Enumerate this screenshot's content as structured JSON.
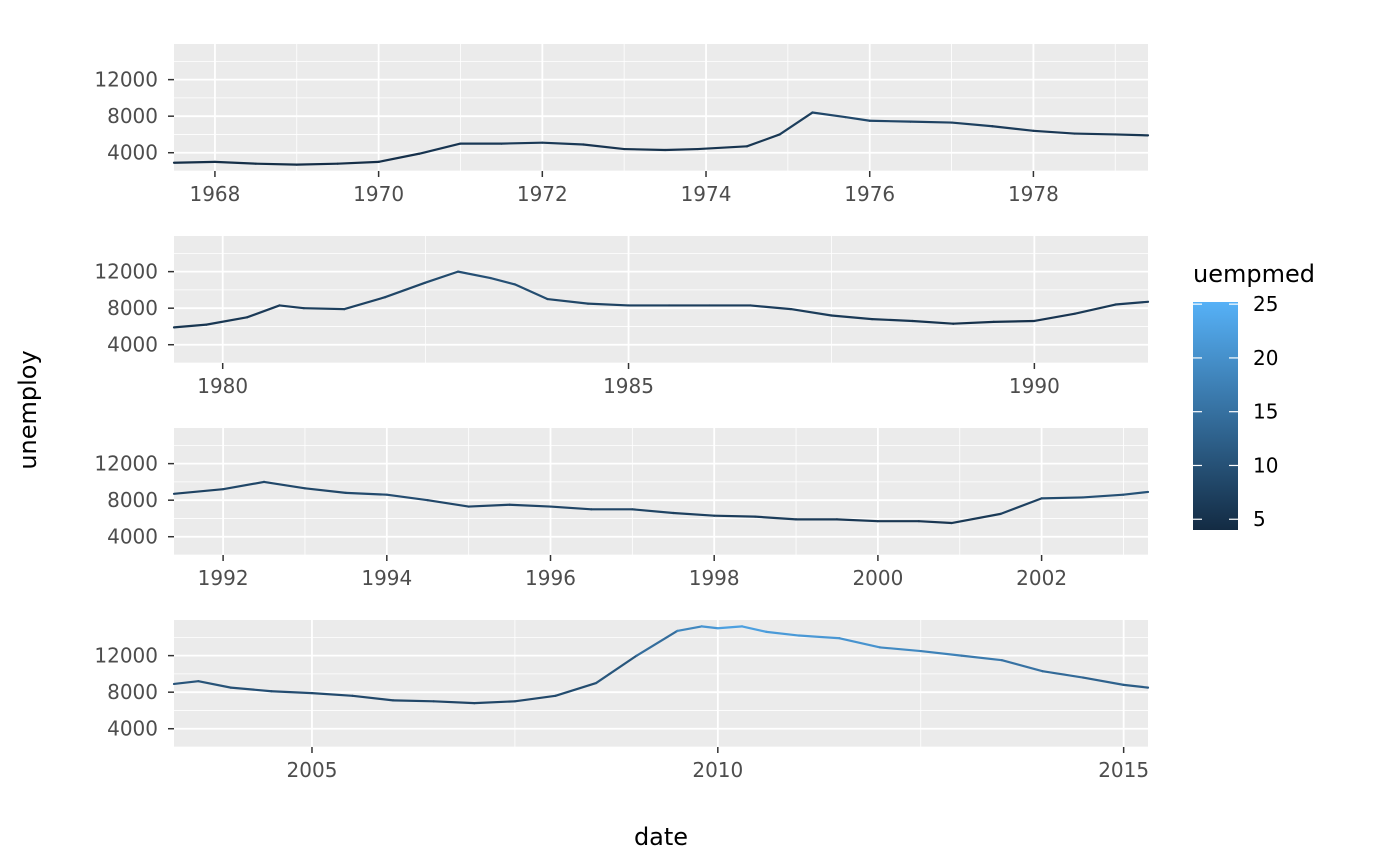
{
  "chart_data": {
    "type": "line",
    "xlabel": "date",
    "ylabel": "unemploy",
    "y_ticks": [
      4000,
      8000,
      12000
    ],
    "ylim": [
      2000,
      15900
    ],
    "grid": true,
    "legend": {
      "title": "uempmed",
      "position": "right",
      "range": [
        4,
        25.2
      ],
      "ticks": [
        5,
        10,
        15,
        20,
        25
      ],
      "color_low": "#132B43",
      "color_high": "#56B1F7"
    },
    "panels": [
      {
        "xlim": [
          1967.5,
          1979.4
        ],
        "x_ticks": [
          1968,
          1970,
          1972,
          1974,
          1976,
          1978
        ],
        "x_minor": [
          1969,
          1971,
          1973,
          1975,
          1977,
          1979
        ],
        "points": [
          [
            1967.5,
            2900,
            4.5
          ],
          [
            1968.0,
            3000,
            4.4
          ],
          [
            1968.5,
            2800,
            4.5
          ],
          [
            1969.0,
            2700,
            4.3
          ],
          [
            1969.5,
            2800,
            4.4
          ],
          [
            1970.0,
            3000,
            4.6
          ],
          [
            1970.5,
            3900,
            5.0
          ],
          [
            1971.0,
            5000,
            6.2
          ],
          [
            1971.5,
            5000,
            6.3
          ],
          [
            1972.0,
            5100,
            6.5
          ],
          [
            1972.5,
            4900,
            6.0
          ],
          [
            1973.0,
            4400,
            5.0
          ],
          [
            1973.5,
            4300,
            5.2
          ],
          [
            1973.9,
            4400,
            5.1
          ],
          [
            1974.5,
            4700,
            5.7
          ],
          [
            1974.9,
            6000,
            6.0
          ],
          [
            1975.3,
            8400,
            8.0
          ],
          [
            1975.7,
            7900,
            9.0
          ],
          [
            1976.0,
            7500,
            8.5
          ],
          [
            1976.5,
            7400,
            7.8
          ],
          [
            1977.0,
            7300,
            7.5
          ],
          [
            1977.5,
            6900,
            7.0
          ],
          [
            1978.0,
            6400,
            6.2
          ],
          [
            1978.5,
            6100,
            6.0
          ],
          [
            1979.0,
            6000,
            5.8
          ],
          [
            1979.4,
            5900,
            5.6
          ]
        ]
      },
      {
        "xlim": [
          1979.4,
          1991.4
        ],
        "x_ticks": [
          1980,
          1985,
          1990
        ],
        "x_minor": [
          1982.5,
          1987.5
        ],
        "points": [
          [
            1979.4,
            5900,
            5.6
          ],
          [
            1979.8,
            6200,
            5.8
          ],
          [
            1980.3,
            7000,
            6.0
          ],
          [
            1980.7,
            8300,
            6.8
          ],
          [
            1981.0,
            8000,
            7.0
          ],
          [
            1981.5,
            7900,
            7.2
          ],
          [
            1982.0,
            9200,
            8.0
          ],
          [
            1982.5,
            10800,
            8.5
          ],
          [
            1982.9,
            12000,
            9.5
          ],
          [
            1983.3,
            11300,
            10.0
          ],
          [
            1983.6,
            10600,
            9.8
          ],
          [
            1984.0,
            9000,
            8.8
          ],
          [
            1984.5,
            8500,
            8.0
          ],
          [
            1985.0,
            8300,
            7.5
          ],
          [
            1985.5,
            8300,
            7.0
          ],
          [
            1986.0,
            8300,
            7.0
          ],
          [
            1986.5,
            8300,
            7.0
          ],
          [
            1987.0,
            7900,
            6.8
          ],
          [
            1987.5,
            7200,
            6.5
          ],
          [
            1988.0,
            6800,
            6.0
          ],
          [
            1988.5,
            6600,
            5.8
          ],
          [
            1989.0,
            6300,
            5.0
          ],
          [
            1989.5,
            6500,
            4.8
          ],
          [
            1990.0,
            6600,
            5.2
          ],
          [
            1990.5,
            7400,
            5.8
          ],
          [
            1991.0,
            8400,
            6.5
          ],
          [
            1991.4,
            8700,
            7.0
          ]
        ]
      },
      {
        "xlim": [
          1991.4,
          2003.3
        ],
        "x_ticks": [
          1992,
          1994,
          1996,
          1998,
          2000,
          2002
        ],
        "x_minor": [
          1993,
          1995,
          1997,
          1999,
          2001,
          2003
        ],
        "points": [
          [
            1991.4,
            8700,
            7.0
          ],
          [
            1992.0,
            9200,
            8.2
          ],
          [
            1992.5,
            10000,
            8.6
          ],
          [
            1993.0,
            9300,
            8.5
          ],
          [
            1993.5,
            8800,
            8.3
          ],
          [
            1994.0,
            8600,
            9.5
          ],
          [
            1994.5,
            8000,
            9.0
          ],
          [
            1995.0,
            7300,
            8.0
          ],
          [
            1995.5,
            7500,
            8.3
          ],
          [
            1996.0,
            7300,
            8.0
          ],
          [
            1996.5,
            7000,
            8.2
          ],
          [
            1997.0,
            7000,
            8.0
          ],
          [
            1997.5,
            6600,
            7.8
          ],
          [
            1998.0,
            6300,
            6.8
          ],
          [
            1998.5,
            6200,
            6.8
          ],
          [
            1999.0,
            5900,
            6.5
          ],
          [
            1999.5,
            5900,
            6.0
          ],
          [
            2000.0,
            5700,
            5.8
          ],
          [
            2000.5,
            5700,
            5.7
          ],
          [
            2000.9,
            5500,
            5.8
          ],
          [
            2001.5,
            6500,
            6.5
          ],
          [
            2002.0,
            8200,
            8.5
          ],
          [
            2002.5,
            8300,
            9.5
          ],
          [
            2003.0,
            8600,
            9.8
          ],
          [
            2003.3,
            8900,
            10.5
          ]
        ]
      },
      {
        "xlim": [
          2003.3,
          2015.3
        ],
        "x_ticks": [
          2005,
          2010,
          2015
        ],
        "x_minor": [
          2007.5,
          2012.5
        ],
        "points": [
          [
            2003.3,
            8900,
            10.5
          ],
          [
            2003.6,
            9200,
            10.5
          ],
          [
            2004.0,
            8500,
            10.0
          ],
          [
            2004.5,
            8100,
            9.5
          ],
          [
            2005.0,
            7900,
            9.0
          ],
          [
            2005.5,
            7600,
            8.8
          ],
          [
            2006.0,
            7100,
            8.5
          ],
          [
            2006.5,
            7000,
            8.3
          ],
          [
            2007.0,
            6800,
            8.0
          ],
          [
            2007.5,
            7000,
            8.5
          ],
          [
            2008.0,
            7600,
            8.8
          ],
          [
            2008.5,
            9000,
            9.5
          ],
          [
            2009.0,
            12000,
            12.0
          ],
          [
            2009.5,
            14700,
            17.0
          ],
          [
            2009.8,
            15200,
            20.0
          ],
          [
            2010.0,
            15000,
            22.0
          ],
          [
            2010.3,
            15200,
            23.0
          ],
          [
            2010.6,
            14600,
            22.0
          ],
          [
            2011.0,
            14200,
            21.0
          ],
          [
            2011.5,
            13900,
            21.5
          ],
          [
            2012.0,
            12900,
            19.5
          ],
          [
            2012.5,
            12500,
            18.5
          ],
          [
            2013.0,
            12000,
            17.0
          ],
          [
            2013.5,
            11500,
            16.0
          ],
          [
            2014.0,
            10300,
            14.5
          ],
          [
            2014.5,
            9600,
            13.5
          ],
          [
            2015.0,
            8800,
            12.0
          ],
          [
            2015.3,
            8500,
            11.5
          ]
        ]
      }
    ]
  }
}
